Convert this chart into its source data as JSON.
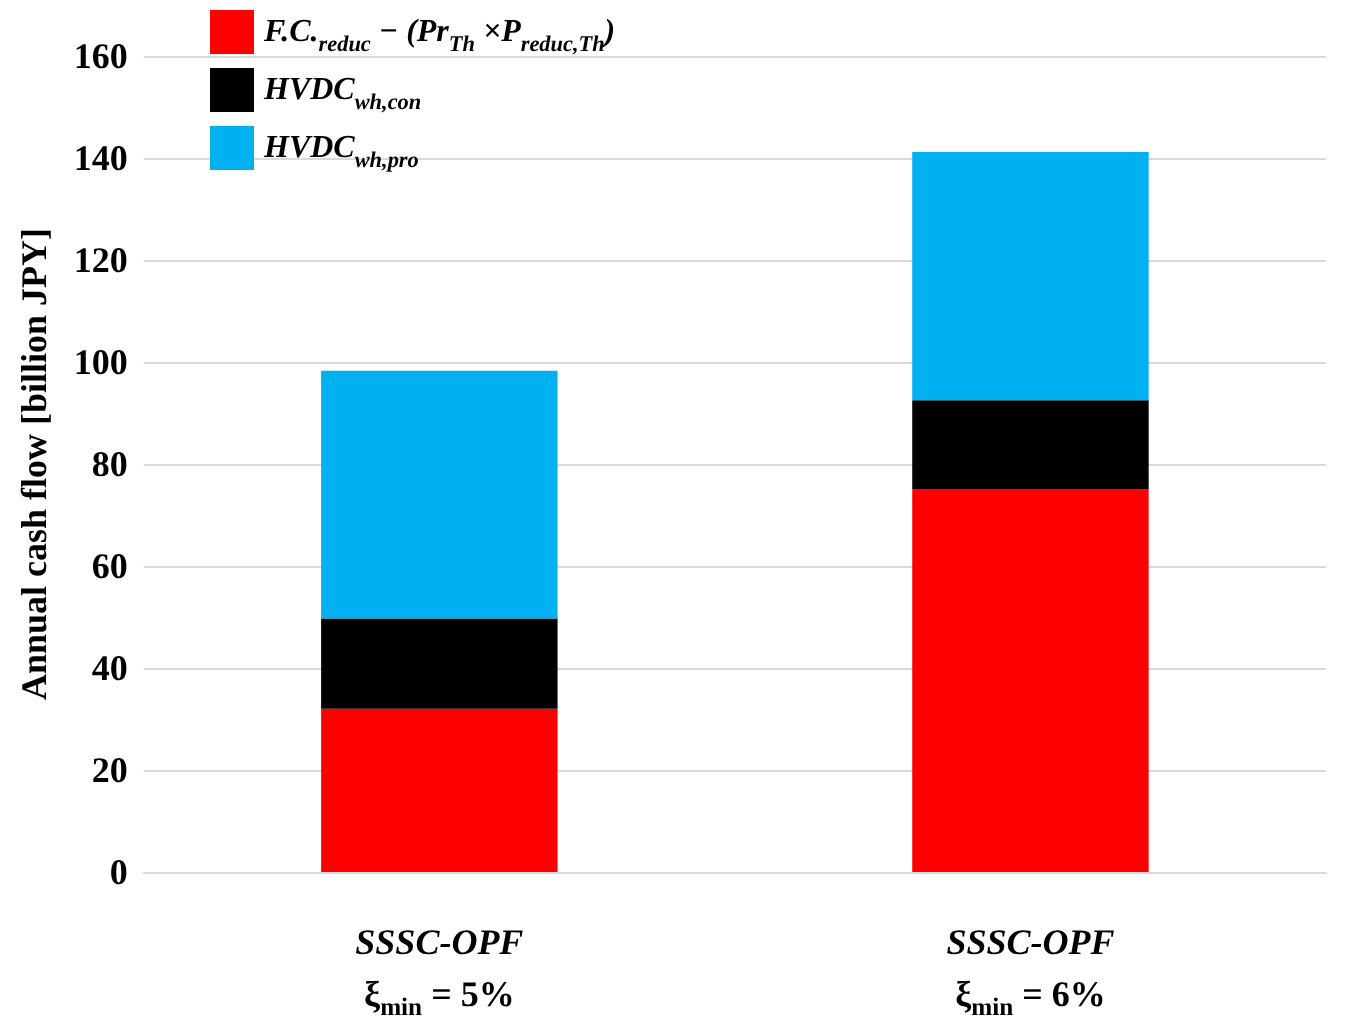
{
  "chart_data": {
    "type": "bar",
    "stacked": true,
    "ylabel": "Annual cash flow [billion JPY]",
    "categories": [
      "SSSC-OPF\nξ$_{min}$ = 5%",
      "SSSC-OPF\nξ$_{min}$ = 6%"
    ],
    "series": [
      {
        "name": "F.C.$_{reduc}$ − (Pr$_{Th}$ ×P$_{reduc,Th}$)",
        "color": "#ff0000",
        "values": [
          32,
          75
        ]
      },
      {
        "name": "HVDC$_{wh,con}$",
        "color": "#000000",
        "values": [
          17.7,
          17.5
        ]
      },
      {
        "name": "HVDC$_{wh,pro}$",
        "color": "#00b0f0",
        "values": [
          48.6,
          48.7
        ]
      }
    ],
    "ylim": [
      0,
      160
    ],
    "yticks": [
      0,
      20,
      40,
      60,
      80,
      100,
      120,
      140,
      160
    ],
    "grid": "y",
    "legend": "top left"
  }
}
